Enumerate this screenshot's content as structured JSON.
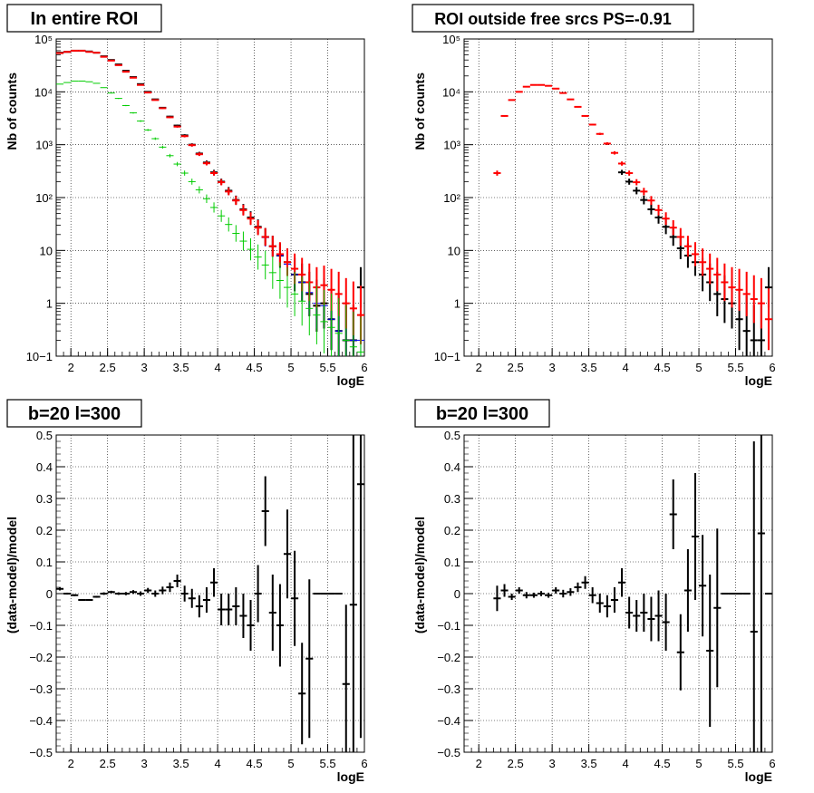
{
  "chart_data": [
    {
      "type": "scatter",
      "title": "In entire ROI",
      "xlabel": "logE",
      "ylabel": "Nb of counts",
      "xlim": [
        1.8,
        6.0
      ],
      "ylim": [
        0.1,
        100000
      ],
      "yscale": "log",
      "grid": true,
      "xticks": [
        "2",
        "2.5",
        "3",
        "3.5",
        "4",
        "4.5",
        "5",
        "5.5",
        "6"
      ],
      "yticks": [
        "10−1",
        "1",
        "10",
        "10²",
        "10³",
        "10⁴",
        "10⁵"
      ],
      "series": [
        {
          "color": "#000000",
          "x": [
            1.85,
            1.95,
            2.05,
            2.15,
            2.25,
            2.35,
            2.45,
            2.55,
            2.65,
            2.75,
            2.85,
            2.95,
            3.05,
            3.15,
            3.25,
            3.35,
            3.45,
            3.55,
            3.65,
            3.75,
            3.85,
            3.95,
            4.05,
            4.15,
            4.25,
            4.35,
            4.45,
            4.55,
            4.65,
            4.75,
            4.85,
            4.95,
            5.05,
            5.15,
            5.25,
            5.35,
            5.45,
            5.55,
            5.65,
            5.75,
            5.85,
            5.95
          ],
          "y": [
            55000,
            57000,
            60000,
            60000,
            58000,
            55000,
            47000,
            40000,
            33000,
            25000,
            19000,
            14000,
            10000,
            7200,
            5000,
            3400,
            2300,
            1500,
            1000,
            680,
            460,
            300,
            200,
            135,
            90,
            60,
            42,
            28,
            18,
            12,
            8,
            6,
            3.5,
            2.5,
            1.5,
            0.9,
            1.0,
            0.5,
            0.3,
            0.2,
            0.2,
            2.0
          ]
        },
        {
          "color": "#0000ff",
          "x": [
            1.85,
            1.95,
            2.05,
            2.15,
            2.25,
            2.35,
            2.45,
            2.55,
            2.65,
            2.75,
            2.85,
            2.95,
            3.05,
            3.15,
            3.25,
            3.35,
            3.45,
            3.55,
            3.65,
            3.75,
            3.85,
            3.95,
            4.05,
            4.15,
            4.25,
            4.35,
            4.45,
            4.55,
            4.65,
            4.75,
            4.85,
            4.95,
            5.05,
            5.15,
            5.25,
            5.35,
            5.45,
            5.55,
            5.65,
            5.75,
            5.85,
            5.95
          ],
          "y": [
            54000,
            57000,
            60000,
            60000,
            57000,
            55000,
            46000,
            39000,
            32000,
            24000,
            18500,
            13500,
            9700,
            7000,
            4900,
            3300,
            2200,
            1450,
            980,
            660,
            445,
            290,
            195,
            130,
            88,
            58,
            40,
            27,
            17.5,
            12,
            8,
            5.5,
            3.5,
            2.5,
            1.6,
            1.0,
            0.9,
            0.5,
            0.3,
            0.2,
            0.2,
            0.2
          ]
        },
        {
          "color": "#ff0000",
          "x": [
            1.85,
            1.95,
            2.05,
            2.15,
            2.25,
            2.35,
            2.45,
            2.55,
            2.65,
            2.75,
            2.85,
            2.95,
            3.05,
            3.15,
            3.25,
            3.35,
            3.45,
            3.55,
            3.65,
            3.75,
            3.85,
            3.95,
            4.05,
            4.15,
            4.25,
            4.35,
            4.45,
            4.55,
            4.65,
            4.75,
            4.85,
            4.95,
            5.05,
            5.15,
            5.25,
            5.35,
            5.45,
            5.55,
            5.65,
            5.75,
            5.85,
            5.95
          ],
          "y": [
            54000,
            57000,
            60000,
            60000,
            57000,
            55000,
            46000,
            39000,
            32000,
            24000,
            18500,
            13500,
            9700,
            7000,
            4900,
            3300,
            2200,
            1450,
            980,
            660,
            445,
            290,
            195,
            130,
            88,
            58,
            40,
            27,
            18,
            12,
            8.5,
            6,
            4.5,
            3.5,
            2.5,
            2.0,
            2.2,
            1.8,
            1.5,
            1.0,
            0.8,
            0.6
          ]
        },
        {
          "color": "#00cc00",
          "x": [
            1.85,
            1.95,
            2.05,
            2.15,
            2.25,
            2.35,
            2.45,
            2.55,
            2.65,
            2.75,
            2.85,
            2.95,
            3.05,
            3.15,
            3.25,
            3.35,
            3.45,
            3.55,
            3.65,
            3.75,
            3.85,
            3.95,
            4.05,
            4.15,
            4.25,
            4.35,
            4.45,
            4.55,
            4.65,
            4.75,
            4.85,
            4.95,
            5.05,
            5.15,
            5.25,
            5.35,
            5.45,
            5.55,
            5.65,
            5.75,
            5.85,
            5.95
          ],
          "y": [
            14000,
            15000,
            16000,
            16000,
            15500,
            14500,
            12000,
            9500,
            7500,
            5500,
            4000,
            2800,
            1900,
            1300,
            900,
            620,
            430,
            290,
            200,
            140,
            95,
            65,
            45,
            31,
            21,
            15,
            10.5,
            7.5,
            5.3,
            3.8,
            2.7,
            2.0,
            1.5,
            1.1,
            0.8,
            0.6,
            0.45,
            0.35,
            0.27,
            0.2,
            0.15,
            0.12
          ]
        }
      ]
    },
    {
      "type": "scatter",
      "title": "ROI outside free srcs PS=-0.91",
      "xlabel": "logE",
      "ylabel": "Nb of counts",
      "xlim": [
        1.8,
        6.0
      ],
      "ylim": [
        0.1,
        100000
      ],
      "yscale": "log",
      "grid": true,
      "xticks": [
        "2",
        "2.5",
        "3",
        "3.5",
        "4",
        "4.5",
        "5",
        "5.5",
        "6"
      ],
      "yticks": [
        "10−1",
        "1",
        "10",
        "10²",
        "10³",
        "10⁴",
        "10⁵"
      ],
      "series": [
        {
          "color": "#000000",
          "x": [
            3.95,
            4.05,
            4.15,
            4.25,
            4.35,
            4.45,
            4.55,
            4.65,
            4.75,
            4.85,
            4.95,
            5.05,
            5.15,
            5.25,
            5.35,
            5.45,
            5.55,
            5.65,
            5.75,
            5.85,
            5.95
          ],
          "y": [
            300,
            200,
            135,
            90,
            60,
            42,
            28,
            18,
            11,
            8,
            6,
            3.5,
            2.5,
            1.5,
            1.2,
            1.0,
            0.5,
            0.3,
            0.2,
            0.2,
            2.0
          ]
        },
        {
          "color": "#ff0000",
          "x": [
            2.25,
            2.35,
            2.45,
            2.55,
            2.65,
            2.75,
            2.85,
            2.95,
            3.05,
            3.15,
            3.25,
            3.35,
            3.45,
            3.55,
            3.65,
            3.75,
            3.85,
            3.95,
            4.05,
            4.15,
            4.25,
            4.35,
            4.45,
            4.55,
            4.65,
            4.75,
            4.85,
            4.95,
            5.05,
            5.15,
            5.25,
            5.35,
            5.45,
            5.55,
            5.65,
            5.75,
            5.85,
            5.95
          ],
          "y": [
            290,
            3500,
            7000,
            10000,
            12500,
            13500,
            13500,
            13000,
            11500,
            9500,
            7200,
            5200,
            3500,
            2400,
            1600,
            1050,
            700,
            440,
            290,
            195,
            130,
            88,
            58,
            40,
            27,
            18,
            12,
            8.5,
            6,
            4.5,
            3.5,
            2.5,
            2.0,
            1.8,
            1.5,
            1.2,
            1.0,
            0.5
          ]
        }
      ]
    },
    {
      "type": "scatter",
      "title": "b=20 l=300",
      "xlabel": "logE",
      "ylabel": "(data-model)/model",
      "xlim": [
        1.8,
        6.0
      ],
      "ylim": [
        -0.5,
        0.5
      ],
      "grid": true,
      "xticks": [
        "2",
        "2.5",
        "3",
        "3.5",
        "4",
        "4.5",
        "5",
        "5.5",
        "6"
      ],
      "yticks": [
        "−0.5",
        "−0.4",
        "−0.3",
        "−0.2",
        "−0.1",
        "0",
        "0.1",
        "0.2",
        "0.3",
        "0.4",
        "0.5"
      ],
      "series": [
        {
          "color": "#000000",
          "x": [
            1.85,
            1.95,
            2.05,
            2.15,
            2.25,
            2.35,
            2.45,
            2.55,
            2.65,
            2.75,
            2.85,
            2.95,
            3.05,
            3.15,
            3.25,
            3.35,
            3.45,
            3.55,
            3.65,
            3.75,
            3.85,
            3.95,
            4.05,
            4.15,
            4.25,
            4.35,
            4.45,
            4.55,
            4.65,
            4.75,
            4.85,
            4.95,
            5.05,
            5.15,
            5.25,
            5.35,
            5.45,
            5.55,
            5.65,
            5.75,
            5.85,
            5.95
          ],
          "y": [
            0.015,
            0.0,
            -0.005,
            -0.02,
            -0.02,
            -0.01,
            0.0,
            0.005,
            0.0,
            0.0,
            0.005,
            0.0,
            0.01,
            0.0,
            0.01,
            0.02,
            0.04,
            0.0,
            -0.015,
            -0.04,
            -0.02,
            0.035,
            -0.05,
            -0.05,
            -0.04,
            -0.07,
            -0.1,
            0.0,
            0.26,
            -0.06,
            -0.1,
            0.125,
            -0.015,
            -0.315,
            -0.205,
            0.0,
            0.0,
            0.0,
            0.0,
            -0.285,
            -0.035,
            0.345
          ],
          "err": [
            0.005,
            0.003,
            0.003,
            0.003,
            0.003,
            0.003,
            0.004,
            0.004,
            0.004,
            0.005,
            0.006,
            0.007,
            0.008,
            0.01,
            0.012,
            0.015,
            0.02,
            0.025,
            0.03,
            0.035,
            0.04,
            0.045,
            0.05,
            0.05,
            0.06,
            0.07,
            0.08,
            0.09,
            0.11,
            0.12,
            0.13,
            0.14,
            0.15,
            0.16,
            0.25,
            0.0,
            0.0,
            0.0,
            0.0,
            0.25,
            0.6,
            0.8
          ]
        }
      ]
    },
    {
      "type": "scatter",
      "title": "b=20 l=300",
      "xlabel": "logE",
      "ylabel": "(data-model)/model",
      "xlim": [
        1.8,
        6.0
      ],
      "ylim": [
        -0.5,
        0.5
      ],
      "grid": true,
      "xticks": [
        "2",
        "2.5",
        "3",
        "3.5",
        "4",
        "4.5",
        "5",
        "5.5",
        "6"
      ],
      "yticks": [
        "−0.5",
        "−0.4",
        "−0.3",
        "−0.2",
        "−0.1",
        "0",
        "0.1",
        "0.2",
        "0.3",
        "0.4",
        "0.5"
      ],
      "series": [
        {
          "color": "#000000",
          "x": [
            2.25,
            2.35,
            2.45,
            2.55,
            2.65,
            2.75,
            2.85,
            2.95,
            3.05,
            3.15,
            3.25,
            3.35,
            3.45,
            3.55,
            3.65,
            3.75,
            3.85,
            3.95,
            4.05,
            4.15,
            4.25,
            4.35,
            4.45,
            4.55,
            4.65,
            4.75,
            4.85,
            4.95,
            5.05,
            5.15,
            5.25,
            5.35,
            5.45,
            5.55,
            5.65,
            5.75,
            5.85,
            5.95
          ],
          "y": [
            -0.015,
            0.01,
            -0.01,
            0.01,
            -0.005,
            -0.005,
            0.0,
            -0.005,
            0.01,
            0.0,
            0.005,
            0.02,
            0.035,
            -0.005,
            -0.03,
            -0.04,
            -0.02,
            0.035,
            -0.06,
            -0.07,
            -0.06,
            -0.08,
            -0.07,
            -0.09,
            0.25,
            -0.185,
            0.01,
            0.18,
            0.025,
            -0.18,
            -0.045,
            0.0,
            0.0,
            0.0,
            0.0,
            -0.12,
            0.19,
            0.0
          ],
          "err": [
            0.04,
            0.02,
            0.01,
            0.01,
            0.01,
            0.008,
            0.008,
            0.008,
            0.01,
            0.012,
            0.012,
            0.015,
            0.02,
            0.025,
            0.03,
            0.035,
            0.04,
            0.045,
            0.05,
            0.05,
            0.06,
            0.07,
            0.08,
            0.09,
            0.11,
            0.12,
            0.13,
            0.2,
            0.16,
            0.24,
            0.25,
            0.0,
            0.0,
            0.0,
            0.0,
            0.6,
            0.7,
            0.0
          ]
        }
      ]
    }
  ]
}
